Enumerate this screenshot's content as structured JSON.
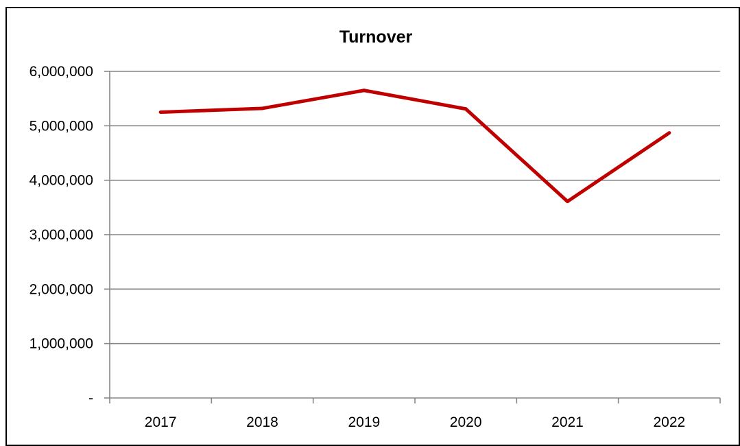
{
  "chart_data": {
    "type": "line",
    "title": "Turnover",
    "xlabel": "",
    "ylabel": "",
    "categories": [
      "2017",
      "2018",
      "2019",
      "2020",
      "2021",
      "2022"
    ],
    "series": [
      {
        "values": [
          5250000,
          5320000,
          5650000,
          5310000,
          3610000,
          4870000
        ],
        "color": "#c00000"
      }
    ],
    "ylim": [
      0,
      6000000
    ],
    "y_ticks": [
      0,
      1000000,
      2000000,
      3000000,
      4000000,
      5000000,
      6000000
    ],
    "y_tick_labels": [
      "-",
      "1,000,000",
      "2,000,000",
      "3,000,000",
      "4,000,000",
      "5,000,000",
      "6,000,000"
    ],
    "grid": true,
    "legend": "none"
  },
  "colors": {
    "line": "#c00000",
    "gridline": "#868686",
    "axis": "#868686",
    "text": "#000000"
  }
}
